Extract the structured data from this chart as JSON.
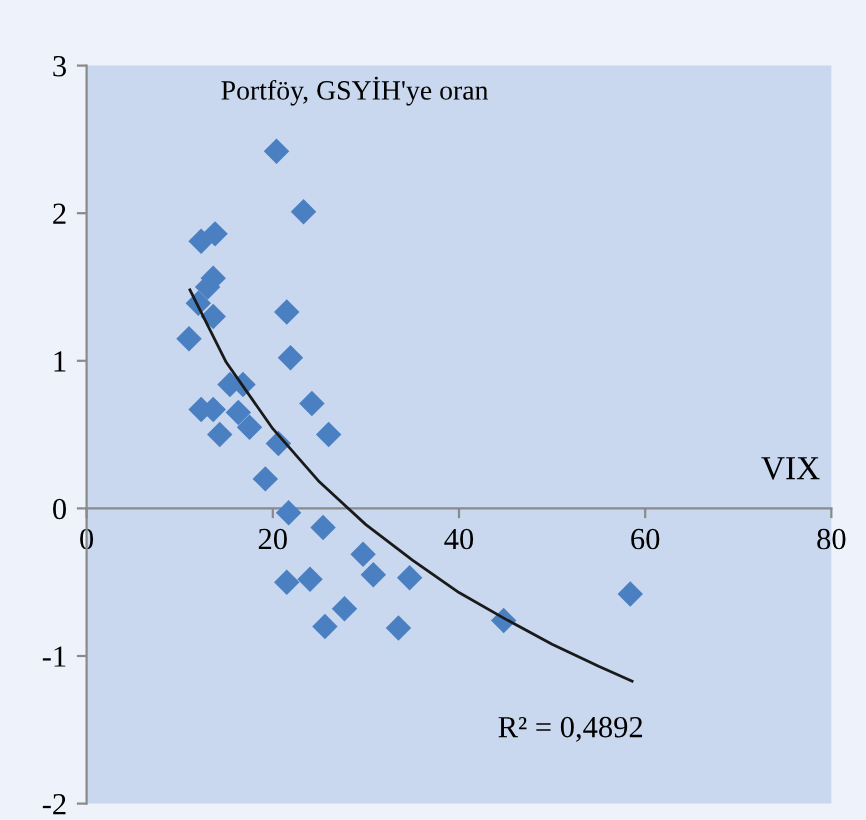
{
  "chart_data": {
    "type": "scatter",
    "ylabel": "Portföy, GSYİH'ye oran",
    "xlabel": "VIX",
    "xlim": [
      0,
      80
    ],
    "ylim": [
      -2,
      3
    ],
    "xticks": [
      0,
      20,
      40,
      60,
      80
    ],
    "yticks": [
      -2,
      -1,
      0,
      1,
      2,
      3
    ],
    "grid": false,
    "legend": false,
    "annotations": [
      "R² = 0,4892"
    ],
    "series": [
      {
        "color": "#4a80c2",
        "marker": "diamond",
        "x": [
          20.4,
          23.3,
          12.3,
          13.8,
          13.6,
          13.0,
          12.0,
          13.6,
          11.0,
          21.5,
          21.9,
          15.4,
          16.8,
          24.2,
          12.3,
          13.6,
          16.3,
          17.5,
          14.3,
          26.0,
          20.6,
          19.2,
          21.7,
          25.4,
          29.7,
          30.8,
          21.5,
          24.0,
          27.7,
          25.6,
          33.5,
          34.7,
          44.8,
          58.4
        ],
        "values": [
          2.42,
          2.01,
          1.81,
          1.86,
          1.56,
          1.5,
          1.39,
          1.3,
          1.15,
          1.33,
          1.02,
          0.84,
          0.84,
          0.71,
          0.67,
          0.67,
          0.65,
          0.55,
          0.5,
          0.5,
          0.44,
          0.2,
          -0.03,
          -0.13,
          -0.31,
          -0.45,
          -0.5,
          -0.48,
          -0.68,
          -0.8,
          -0.81,
          -0.47,
          -0.76,
          -0.58
        ]
      },
      {
        "type": "line",
        "color": "#1a1a1a",
        "marker": "none",
        "line_style": "solid",
        "x": [
          11.1,
          15,
          20,
          25,
          30,
          35,
          40,
          45,
          50,
          55,
          58.6
        ],
        "values": [
          1.48,
          0.99,
          0.54,
          0.18,
          -0.11,
          -0.35,
          -0.57,
          -0.75,
          -0.92,
          -1.07,
          -1.17
        ]
      }
    ]
  }
}
